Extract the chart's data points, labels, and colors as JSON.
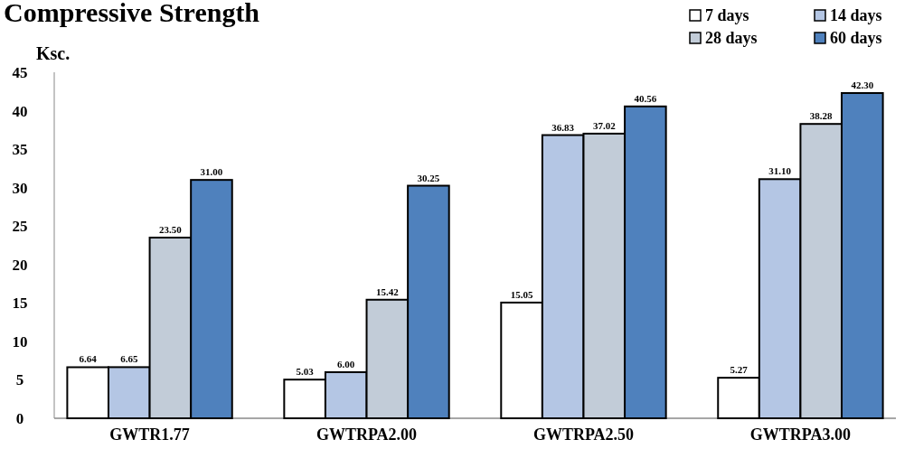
{
  "chart_data": {
    "type": "bar",
    "title": "Compressive Strength",
    "ylabel": "Ksc.",
    "categories": [
      "GWTR1.77",
      "GWTRPA2.00",
      "GWTRPA2.50",
      "GWTRPA3.00"
    ],
    "series": [
      {
        "name": "7 days",
        "color": "#ffffff",
        "values": [
          6.64,
          5.03,
          15.05,
          5.27
        ],
        "value_labels": [
          "6.64",
          "5.03",
          "15.05",
          "5.27"
        ]
      },
      {
        "name": "14 days",
        "color": "#b4c6e4",
        "values": [
          6.65,
          6.0,
          36.83,
          31.1
        ],
        "value_labels": [
          "6.65",
          "6.00",
          "36.83",
          "31.10"
        ]
      },
      {
        "name": "28 days",
        "color": "#c2ccd8",
        "values": [
          23.5,
          15.42,
          37.02,
          38.28
        ],
        "value_labels": [
          "23.50",
          "15.42",
          "37.02",
          "38.28"
        ]
      },
      {
        "name": "60 days",
        "color": "#4f81bd",
        "values": [
          31.0,
          30.25,
          40.56,
          42.3
        ],
        "value_labels": [
          "31.00",
          "30.25",
          "40.56",
          "42.30"
        ]
      }
    ],
    "ylim": [
      0,
      45
    ],
    "yticks": [
      0,
      5,
      10,
      15,
      20,
      25,
      30,
      35,
      40,
      45
    ],
    "grid": false,
    "legend": "top right"
  }
}
